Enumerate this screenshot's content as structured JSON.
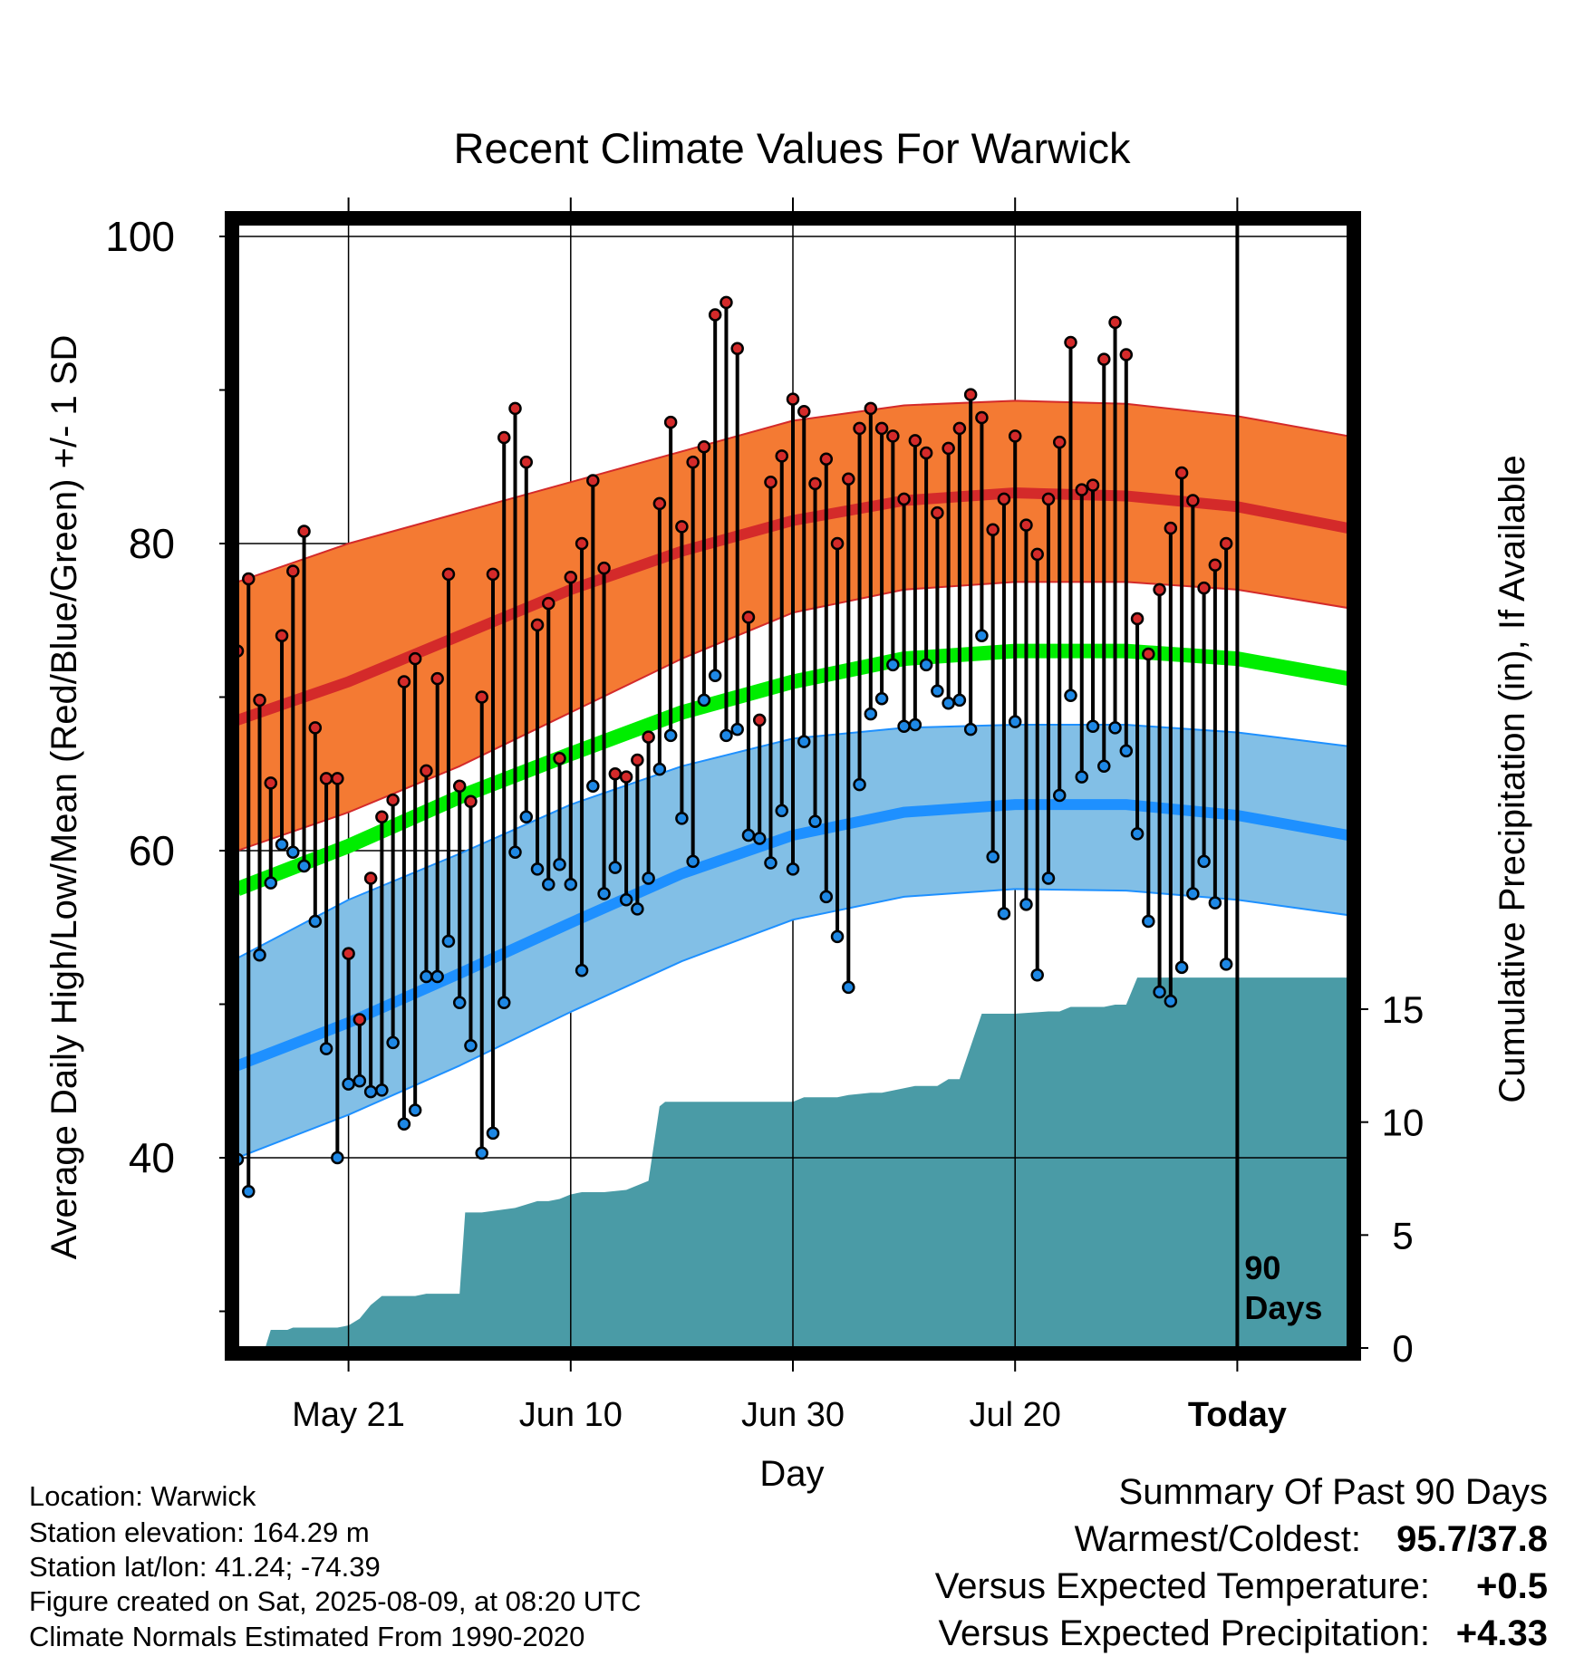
{
  "chart_data": {
    "type": "line",
    "title": "Recent Climate Values For Warwick",
    "xlabel": "Day",
    "ylabel_left": "Average Daily High/Low/Mean (Red/Blue/Green) +/- 1 SD",
    "ylabel_right": "Cumulative Precipitation (in), If Available",
    "ylim": [
      28.5,
      101
    ],
    "y_ticks": [
      100,
      80,
      60,
      40
    ],
    "y_minor_ticks": [
      90,
      70,
      50,
      30
    ],
    "precip_ylim": [
      0,
      55
    ],
    "precip_ticks": [
      15,
      10,
      5,
      0
    ],
    "xlim": [
      0,
      100
    ],
    "x_ticks": [
      {
        "day": 10,
        "label": "May 21"
      },
      {
        "day": 30,
        "label": "Jun 10"
      },
      {
        "day": 50,
        "label": "Jun 30"
      },
      {
        "day": 70,
        "label": "Jul 20"
      },
      {
        "day": 90,
        "label": "Today"
      }
    ],
    "today_day": 90,
    "today_label_lines": [
      "90",
      "Days"
    ],
    "colors": {
      "high_band": "#f47a33",
      "high_mean": "#d42a2a",
      "mean_band": "#00ee00",
      "low_band": "#82bfe6",
      "low_mean": "#1e90ff",
      "precip": "#4a9ba6",
      "high_dot": "#d42a2a",
      "low_dot": "#1e88e5"
    },
    "normals": {
      "x": [
        0,
        10,
        20,
        30,
        40,
        50,
        60,
        70,
        80,
        90,
        100
      ],
      "high_mean": [
        68.5,
        71.0,
        74.0,
        77.0,
        79.5,
        81.5,
        82.8,
        83.3,
        83.1,
        82.4,
        81.0
      ],
      "high_upper": [
        77.5,
        80.0,
        82.0,
        84.0,
        86.0,
        88.0,
        89.0,
        89.3,
        89.1,
        88.3,
        87.0
      ],
      "high_lower": [
        60.0,
        62.5,
        65.5,
        69.0,
        72.5,
        75.5,
        77.0,
        77.5,
        77.5,
        77.0,
        75.8
      ],
      "mean": [
        57.5,
        60.3,
        63.5,
        66.3,
        69.0,
        71.0,
        72.5,
        73.0,
        73.0,
        72.5,
        71.2
      ],
      "low_upper": [
        53.0,
        56.8,
        59.8,
        63.0,
        65.5,
        67.3,
        68.0,
        68.2,
        68.2,
        67.7,
        66.8
      ],
      "low_mean": [
        46.0,
        48.8,
        52.0,
        55.3,
        58.5,
        61.0,
        62.5,
        63.0,
        63.0,
        62.3,
        61.0
      ],
      "low_lower": [
        40.0,
        42.8,
        46.0,
        49.5,
        52.8,
        55.5,
        57.0,
        57.5,
        57.4,
        56.8,
        55.8
      ]
    },
    "daily": {
      "day": [
        0,
        1,
        2,
        3,
        4,
        5,
        6,
        7,
        8,
        9,
        10,
        11,
        12,
        13,
        14,
        15,
        16,
        17,
        18,
        19,
        20,
        21,
        22,
        23,
        24,
        25,
        26,
        27,
        28,
        29,
        30,
        31,
        32,
        33,
        34,
        35,
        36,
        37,
        38,
        39,
        40,
        41,
        42,
        43,
        44,
        45,
        46,
        47,
        48,
        49,
        50,
        51,
        52,
        53,
        54,
        55,
        56,
        57,
        58,
        59,
        60,
        61,
        62,
        63,
        64,
        65,
        66,
        67,
        68,
        69,
        70,
        71,
        72,
        73,
        74,
        75,
        76,
        77,
        78,
        79,
        80,
        81,
        82,
        83,
        84,
        85,
        86,
        87,
        88,
        89,
        90
      ],
      "high": [
        73.0,
        77.7,
        69.8,
        64.4,
        74.0,
        78.2,
        80.8,
        68.0,
        64.7,
        64.7,
        53.3,
        49.0,
        58.2,
        62.2,
        63.3,
        71.0,
        72.5,
        65.2,
        71.2,
        78.0,
        64.2,
        63.2,
        70.0,
        78.0,
        86.9,
        88.8,
        85.3,
        74.7,
        76.1,
        66.0,
        77.8,
        80.0,
        84.1,
        78.4,
        65.0,
        64.8,
        65.9,
        67.4,
        82.6,
        87.9,
        81.1,
        85.3,
        86.3,
        94.9,
        95.7,
        92.7,
        75.2,
        68.5,
        84.0,
        85.7,
        89.4,
        88.6,
        83.9,
        85.5,
        80.0,
        84.2,
        87.5,
        88.8,
        87.5,
        87.0,
        82.9,
        86.7,
        85.9,
        82.0,
        86.2,
        87.5,
        89.7,
        88.2,
        80.9,
        82.9,
        87.0,
        81.2,
        79.3,
        82.9,
        86.6,
        93.1,
        83.5,
        83.8,
        92.0,
        94.4,
        92.3,
        75.1,
        72.8,
        77.0,
        81.0,
        84.6,
        82.8,
        77.1,
        78.6,
        80.0,
        null
      ],
      "low": [
        39.9,
        37.8,
        53.2,
        57.9,
        60.4,
        59.9,
        59.0,
        55.4,
        47.1,
        40.0,
        44.8,
        45.0,
        44.3,
        44.4,
        47.5,
        42.2,
        43.1,
        51.8,
        51.8,
        54.1,
        50.1,
        47.3,
        40.3,
        41.6,
        50.1,
        59.9,
        62.2,
        58.8,
        57.8,
        59.1,
        57.8,
        52.2,
        64.2,
        57.2,
        58.9,
        56.8,
        56.2,
        58.2,
        65.3,
        67.5,
        62.1,
        59.3,
        69.8,
        71.4,
        67.5,
        67.9,
        61.0,
        60.8,
        59.2,
        62.6,
        58.8,
        67.1,
        61.9,
        57.0,
        54.4,
        51.1,
        64.3,
        68.9,
        69.9,
        72.1,
        68.1,
        68.2,
        72.1,
        70.4,
        69.6,
        69.8,
        67.9,
        74.0,
        59.6,
        55.9,
        68.4,
        56.5,
        51.9,
        58.2,
        63.6,
        70.1,
        64.8,
        68.1,
        65.5,
        68.0,
        66.5,
        61.1,
        55.4,
        50.8,
        50.2,
        52.4,
        57.2,
        59.3,
        56.6,
        52.6,
        null
      ]
    },
    "precip": {
      "x": [
        2.5,
        3.0,
        4.5,
        5.0,
        6.0,
        9.0,
        10.0,
        11.0,
        11.5,
        12.0,
        13.0,
        14.5,
        16.0,
        17.0,
        18.0,
        19.0,
        20.0,
        20.5,
        22.0,
        25.0,
        27.0,
        28.0,
        29.0,
        30.0,
        31.0,
        33.0,
        35.0,
        37.0,
        38.0,
        38.5,
        41.0,
        42.0,
        44.0,
        46.0,
        48.0,
        50.0,
        51.0,
        52.0,
        54.0,
        55.0,
        57.0,
        58.0,
        60.0,
        61.0,
        63.0,
        64.0,
        65.0,
        67.0,
        69.0,
        70.0,
        73.0,
        74.0,
        75.0,
        78.0,
        79.0,
        80.0,
        81.0,
        82.0,
        83.0,
        85.0,
        87.0,
        90.0,
        100.0
      ],
      "cumulative": [
        0.0,
        0.8,
        0.8,
        0.9,
        0.9,
        0.9,
        1.0,
        1.3,
        1.6,
        1.9,
        2.3,
        2.3,
        2.3,
        2.4,
        2.4,
        2.4,
        2.4,
        6.0,
        6.0,
        6.2,
        6.5,
        6.5,
        6.6,
        6.8,
        6.9,
        6.9,
        7.0,
        7.4,
        10.7,
        10.9,
        10.9,
        10.9,
        10.9,
        10.9,
        10.9,
        10.9,
        11.1,
        11.1,
        11.1,
        11.2,
        11.3,
        11.3,
        11.5,
        11.6,
        11.6,
        11.9,
        11.9,
        14.8,
        14.8,
        14.8,
        14.9,
        14.9,
        15.1,
        15.1,
        15.2,
        15.2,
        16.4,
        16.4,
        16.4,
        16.4,
        16.4,
        16.4,
        16.4
      ]
    }
  },
  "info": {
    "location": "Location: Warwick",
    "elevation": "Station elevation: 164.29 m",
    "latlon": "Station lat/lon: 41.24; -74.39",
    "created": "Figure created on Sat, 2025-08-09, at 08:20 UTC",
    "normals": "Climate Normals Estimated From 1990-2020"
  },
  "summary": {
    "title": "Summary Of Past 90 Days",
    "warm_cold_label": "Warmest/Coldest:",
    "warm_cold_value": "95.7/37.8",
    "temp_label": "Versus Expected Temperature:",
    "temp_value": "+0.5",
    "temp_color": "#d42a2a",
    "precip_label": "Versus Expected Precipitation:",
    "precip_value": "+4.33",
    "precip_color": "#22cc22"
  }
}
